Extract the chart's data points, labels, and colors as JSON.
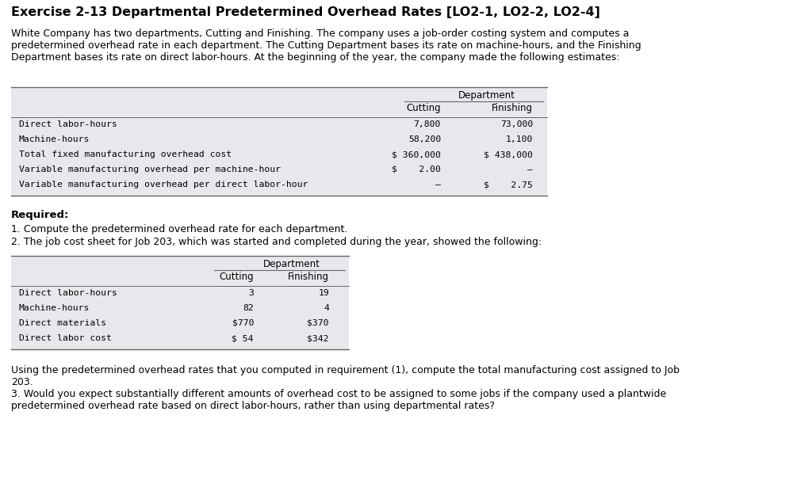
{
  "title": "Exercise 2-13 Departmental Predetermined Overhead Rates [LO2-1, LO2-2, LO2-4]",
  "intro_text": "White Company has two departments, Cutting and Finishing. The company uses a job-order costing system and computes a\npredetermined overhead rate in each department. The Cutting Department bases its rate on machine-hours, and the Finishing\nDepartment bases its rate on direct labor-hours. At the beginning of the year, the company made the following estimates:",
  "table1_header_top": "Department",
  "table1_header_cols": [
    "Cutting",
    "Finishing"
  ],
  "table1_rows": [
    [
      "Direct labor-hours",
      "7,800",
      "73,000"
    ],
    [
      "Machine-hours",
      "58,200",
      "1,100"
    ],
    [
      "Total fixed manufacturing overhead cost",
      "$ 360,000",
      "$ 438,000"
    ],
    [
      "Variable manufacturing overhead per machine-hour",
      "$    2.00",
      "–"
    ],
    [
      "Variable manufacturing overhead per direct labor-hour",
      "–",
      "$    2.75"
    ]
  ],
  "required_label": "Required:",
  "req1": "1. Compute the predetermined overhead rate for each department.",
  "req2": "2. The job cost sheet for Job 203, which was started and completed during the year, showed the following:",
  "table2_header_top": "Department",
  "table2_header_cols": [
    "Cutting",
    "Finishing"
  ],
  "table2_rows": [
    [
      "Direct labor-hours",
      "3",
      "19"
    ],
    [
      "Machine-hours",
      "82",
      "4"
    ],
    [
      "Direct materials",
      "$770",
      "$370"
    ],
    [
      "Direct labor cost",
      "$ 54",
      "$342"
    ]
  ],
  "footer_text": "Using the predetermined overhead rates that you computed in requirement (1), compute the total manufacturing cost assigned to Job\n203.\n3. Would you expect substantially different amounts of overhead cost to be assigned to some jobs if the company used a plantwide\npredetermined overhead rate based on direct labor-hours, rather than using departmental rates?",
  "bg_color": "#ffffff",
  "text_color": "#000000",
  "table_bg": "#e8e8ec",
  "table_line_color": "#666666"
}
